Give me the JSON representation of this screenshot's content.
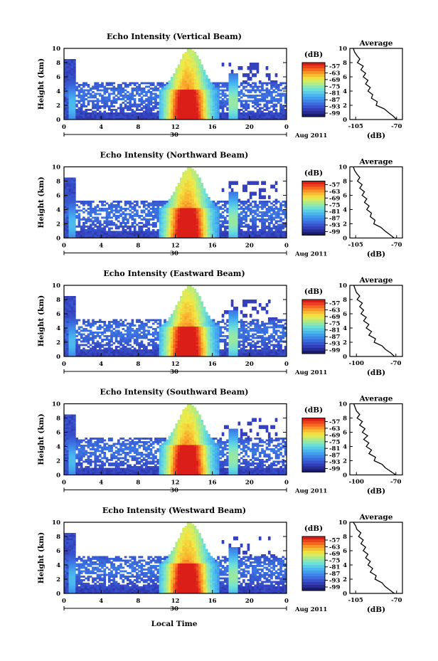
{
  "figure": {
    "time_axis_label": "Local Time"
  },
  "chart_data": [
    {
      "type": "heatmap",
      "title": "Echo Intensity (Vertical Beam)",
      "ylabel": "Height (km)",
      "ylim": [
        0,
        10
      ],
      "yticks": [
        "0",
        "2",
        "4",
        "6",
        "8",
        "10"
      ],
      "xlim": [
        0,
        24
      ],
      "xticks": [
        "0",
        "4",
        "8",
        "12",
        "16",
        "20",
        "0"
      ],
      "date_labels": [
        "30",
        "Aug 2011"
      ],
      "colorbar": {
        "unit": "(dB)",
        "ticks": [
          "-57",
          "-63",
          "-69",
          "-75",
          "-81",
          "-87",
          "-93",
          "-99"
        ]
      },
      "profile": {
        "title": "Average",
        "xlabel": "(dB)",
        "xticks": [
          "-105",
          "-70"
        ],
        "yticks": [
          "0",
          "2",
          "4",
          "6",
          "8",
          "10"
        ],
        "xlim": [
          -110,
          -65
        ],
        "ylim": [
          0,
          10
        ],
        "heights": [
          0,
          0.5,
          1,
          1.5,
          2,
          2.5,
          3,
          3.5,
          4,
          4.5,
          5,
          5.5,
          6,
          6.5,
          7,
          7.5,
          8,
          8.5,
          9,
          9.5,
          10
        ],
        "values": [
          -70,
          -73,
          -77,
          -82,
          -86,
          -88,
          -90,
          -92,
          -93,
          -94,
          -95,
          -96,
          -97,
          -98,
          -99,
          -100,
          -102,
          -103,
          -104,
          -106,
          -107
        ]
      }
    },
    {
      "type": "heatmap",
      "title": "Echo Intensity (Northward Beam)",
      "ylabel": "Height (km)",
      "ylim": [
        0,
        10
      ],
      "yticks": [
        "0",
        "2",
        "4",
        "6",
        "8",
        "10"
      ],
      "xlim": [
        0,
        24
      ],
      "xticks": [
        "0",
        "4",
        "8",
        "12",
        "16",
        "20",
        "0"
      ],
      "date_labels": [
        "30",
        "Aug 2011"
      ],
      "colorbar": {
        "unit": "(dB)",
        "ticks": [
          "-57",
          "-63",
          "-69",
          "-75",
          "-81",
          "-87",
          "-93",
          "-99"
        ]
      },
      "profile": {
        "title": "Average",
        "xlabel": "(dB)",
        "xticks": [
          "-105",
          "-70"
        ],
        "yticks": [
          "0",
          "2",
          "4",
          "6",
          "8",
          "10"
        ],
        "xlim": [
          -110,
          -65
        ],
        "ylim": [
          0,
          10
        ],
        "heights": [
          0,
          0.5,
          1,
          1.5,
          2,
          2.5,
          3,
          3.5,
          4,
          4.5,
          5,
          5.5,
          6,
          6.5,
          7,
          7.5,
          8,
          8.5,
          9,
          9.5,
          10
        ],
        "values": [
          -72,
          -76,
          -80,
          -85,
          -88,
          -90,
          -91,
          -93,
          -94,
          -95,
          -96,
          -97,
          -98,
          -99,
          -100,
          -101,
          -102,
          -103,
          -104,
          -106,
          -107
        ]
      }
    },
    {
      "type": "heatmap",
      "title": "Echo Intensity (Eastward Beam)",
      "ylabel": "Height (km)",
      "ylim": [
        0,
        10
      ],
      "yticks": [
        "0",
        "2",
        "4",
        "6",
        "8",
        "10"
      ],
      "xlim": [
        0,
        24
      ],
      "xticks": [
        "0",
        "4",
        "8",
        "12",
        "16",
        "20",
        "0"
      ],
      "date_labels": [
        "30",
        "Aug 2011"
      ],
      "colorbar": {
        "unit": "(dB)",
        "ticks": [
          "-57",
          "-63",
          "-69",
          "-75",
          "-81",
          "-87",
          "-93",
          "-99"
        ]
      },
      "profile": {
        "title": "Average",
        "xlabel": "(dB)",
        "xticks": [
          "-100",
          "-70"
        ],
        "yticks": [
          "0",
          "2",
          "4",
          "6",
          "8",
          "10"
        ],
        "xlim": [
          -105,
          -65
        ],
        "ylim": [
          0,
          10
        ],
        "heights": [
          0,
          0.5,
          1,
          1.5,
          2,
          2.5,
          3,
          3.5,
          4,
          4.5,
          5,
          5.5,
          6,
          6.5,
          7,
          7.5,
          8,
          8.5,
          9,
          9.5,
          10
        ],
        "values": [
          -71,
          -74,
          -78,
          -82,
          -85,
          -87,
          -89,
          -90,
          -91,
          -92,
          -93,
          -94,
          -95,
          -96,
          -96,
          -97,
          -98,
          -99,
          -100,
          -101,
          -102
        ]
      }
    },
    {
      "type": "heatmap",
      "title": "Echo Intensity (Southward Beam)",
      "ylabel": "Height (km)",
      "ylim": [
        0,
        10
      ],
      "yticks": [
        "0",
        "2",
        "4",
        "6",
        "8",
        "10"
      ],
      "xlim": [
        0,
        24
      ],
      "xticks": [
        "0",
        "4",
        "8",
        "12",
        "16",
        "20",
        "0"
      ],
      "date_labels": [
        "30",
        "Aug 2011"
      ],
      "colorbar": {
        "unit": "(dB)",
        "ticks": [
          "-57",
          "-63",
          "-69",
          "-75",
          "-81",
          "-87",
          "-93",
          "-99"
        ]
      },
      "profile": {
        "title": "Average",
        "xlabel": "(dB)",
        "xticks": [
          "-100",
          "-70"
        ],
        "yticks": [
          "0",
          "2",
          "4",
          "6",
          "8",
          "10"
        ],
        "xlim": [
          -105,
          -65
        ],
        "ylim": [
          0,
          10
        ],
        "heights": [
          0,
          0.5,
          1,
          1.5,
          2,
          2.5,
          3,
          3.5,
          4,
          4.5,
          5,
          5.5,
          6,
          6.5,
          7,
          7.5,
          8,
          8.5,
          9,
          9.5,
          10
        ],
        "values": [
          -70,
          -74,
          -78,
          -82,
          -85,
          -87,
          -89,
          -90,
          -91,
          -92,
          -93,
          -93,
          -94,
          -95,
          -96,
          -97,
          -98,
          -99,
          -100,
          -101,
          -102
        ]
      }
    },
    {
      "type": "heatmap",
      "title": "Echo Intensity (Westward Beam)",
      "ylabel": "Height (km)",
      "ylim": [
        0,
        10
      ],
      "yticks": [
        "0",
        "2",
        "4",
        "6",
        "8",
        "10"
      ],
      "xlim": [
        0,
        24
      ],
      "xticks": [
        "0",
        "4",
        "8",
        "12",
        "16",
        "20",
        "0"
      ],
      "date_labels": [
        "30",
        "Aug 2011"
      ],
      "colorbar": {
        "unit": "(dB)",
        "ticks": [
          "-57",
          "-63",
          "-69",
          "-75",
          "-81",
          "-87",
          "-93",
          "-99"
        ]
      },
      "profile": {
        "title": "Average",
        "xlabel": "(dB)",
        "xticks": [
          "-105",
          "-70"
        ],
        "yticks": [
          "0",
          "2",
          "4",
          "6",
          "8",
          "10"
        ],
        "xlim": [
          -110,
          -65
        ],
        "ylim": [
          0,
          10
        ],
        "heights": [
          0,
          0.5,
          1,
          1.5,
          2,
          2.5,
          3,
          3.5,
          4,
          4.5,
          5,
          5.5,
          6,
          6.5,
          7,
          7.5,
          8,
          8.5,
          9,
          9.5,
          10
        ],
        "values": [
          -72,
          -76,
          -80,
          -84,
          -87,
          -89,
          -91,
          -92,
          -93,
          -94,
          -95,
          -96,
          -97,
          -98,
          -99,
          -100,
          -101,
          -102,
          -104,
          -105,
          -107
        ]
      }
    }
  ]
}
